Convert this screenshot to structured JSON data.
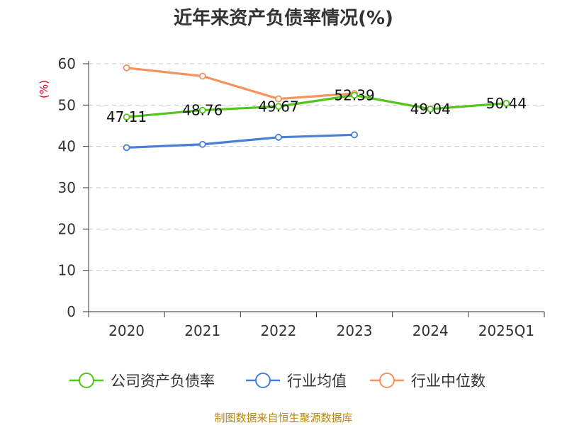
{
  "chart_data": {
    "type": "line",
    "title": "近年来资产负债率情况(%)",
    "ylabel": "(%)",
    "categories": [
      "2020",
      "2021",
      "2022",
      "2023",
      "2024",
      "2025Q1"
    ],
    "ylim": [
      0,
      60
    ],
    "yticks": [
      0,
      10,
      20,
      30,
      40,
      50,
      60
    ],
    "grid": true,
    "legend_position": "bottom",
    "series": [
      {
        "name": "公司资产负债率",
        "color": "#52c41a",
        "values": [
          47.11,
          48.76,
          49.67,
          52.39,
          49.04,
          50.44
        ],
        "labels": [
          "47.11",
          "48.76",
          "49.67",
          "52.39",
          "49.04",
          "50.44"
        ]
      },
      {
        "name": "行业均值",
        "color": "#4a7fd6",
        "values": [
          39.7,
          40.5,
          42.2,
          42.8,
          null,
          null
        ]
      },
      {
        "name": "行业中位数",
        "color": "#f5925e",
        "values": [
          59.0,
          57.0,
          51.5,
          52.8,
          null,
          null
        ]
      }
    ]
  },
  "source": "制图数据来自恒生聚源数据库"
}
